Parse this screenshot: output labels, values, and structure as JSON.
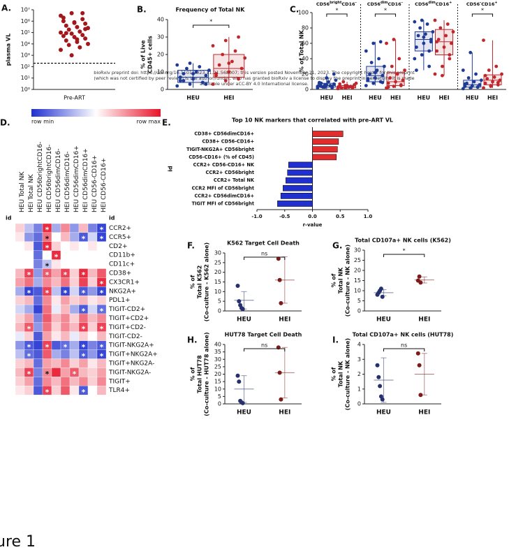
{
  "watermark": [
    "bioRxiv preprint doi: https://doi.org/10.1101/2023.11.21.568007; this version posted November 21, 2023. The copyright holder for this preprint",
    "(which was not certified by peer review) is the author/funder, who has granted bioRxiv a license to display the preprint in perpetuity. It is made",
    "available under aCC-BY 4.0 International license."
  ],
  "figure_label": "ure 1",
  "chart_data": [
    {
      "panel": "A.",
      "type": "scatter",
      "ylabel": "plasma VL",
      "categories": [
        "Pre-ART"
      ],
      "log": true,
      "color": "#a3161c",
      "threshold": 200,
      "ylim": [
        1,
        10000000
      ],
      "yticks": [
        {
          "value": 1,
          "label": "10⁰"
        },
        {
          "value": 10,
          "label": "10¹"
        },
        {
          "value": 100,
          "label": "10²"
        },
        {
          "value": 1000,
          "label": "10³"
        },
        {
          "value": 10000,
          "label": "10⁴"
        },
        {
          "value": 100000,
          "label": "10⁵"
        },
        {
          "value": 1000000,
          "label": "10⁶"
        },
        {
          "value": 10000000,
          "label": "10⁷"
        }
      ],
      "values": [
        3000000,
        5000000,
        1500000,
        2000000,
        800000,
        600000,
        400000,
        300000,
        250000,
        180000,
        120000,
        100000,
        80000,
        60000,
        50000,
        40000,
        30000,
        20000,
        15000,
        10000,
        8000,
        5000,
        3000,
        1000,
        5000000,
        1000000,
        700000,
        200000,
        90000,
        25000
      ]
    },
    {
      "panel": "B.",
      "type": "box",
      "title": "Frequency of Total NK",
      "ylabel": [
        "% of Live",
        "CD45+ cells"
      ],
      "ylim": [
        0,
        40
      ],
      "yticks": [
        0,
        10,
        20,
        30,
        40
      ],
      "sig": "*",
      "groups": [
        {
          "name": "HEU",
          "color": "#1f3a93",
          "values": [
            2,
            3,
            4,
            5,
            6,
            8,
            9,
            10,
            11,
            12,
            13,
            14,
            15,
            4,
            7,
            9,
            3,
            5
          ],
          "box": [
            1,
            4,
            7,
            11,
            15
          ]
        },
        {
          "name": "HEI",
          "color": "#c0272d",
          "values": [
            3,
            5,
            6,
            8,
            10,
            12,
            14,
            16,
            18,
            20,
            22,
            25,
            28,
            30,
            9,
            15
          ],
          "box": [
            2,
            7,
            12,
            20,
            30
          ]
        }
      ]
    },
    {
      "panel": "C.",
      "type": "box",
      "ylabel": [
        "% of Total NK"
      ],
      "ylim": [
        0,
        100
      ],
      "yticks": [
        0,
        20,
        40,
        60,
        80,
        100
      ],
      "subplots": [
        {
          "title_parts": [
            "CD56",
            "bright",
            "CD16",
            "-"
          ],
          "sig": "*",
          "groups": [
            {
              "name": "HEU",
              "color": "#1f3a93",
              "values": [
                2,
                3,
                4,
                5,
                6,
                7,
                8,
                10,
                12,
                3,
                5,
                4,
                6,
                2,
                9,
                15,
                20,
                4
              ],
              "box": [
                0,
                3,
                5,
                8,
                20
              ]
            },
            {
              "name": "HEI",
              "color": "#c0272d",
              "values": [
                1,
                2,
                3,
                4,
                5,
                6,
                2,
                3,
                8,
                10,
                4,
                3,
                5,
                2,
                7
              ],
              "box": [
                0,
                2,
                3,
                5,
                10
              ]
            }
          ]
        },
        {
          "title_parts": [
            "CD56",
            "dim",
            "CD16",
            "-"
          ],
          "sig": "*",
          "groups": [
            {
              "name": "HEU",
              "color": "#1f3a93",
              "values": [
                5,
                8,
                10,
                12,
                15,
                18,
                20,
                25,
                30,
                35,
                40,
                50,
                60,
                62,
                14,
                22,
                9
              ],
              "box": [
                5,
                10,
                18,
                30,
                62
              ]
            },
            {
              "name": "HEI",
              "color": "#c0272d",
              "values": [
                2,
                4,
                6,
                8,
                10,
                12,
                15,
                20,
                25,
                30,
                40,
                60,
                65,
                5,
                3
              ],
              "box": [
                2,
                5,
                10,
                22,
                65
              ]
            }
          ]
        },
        {
          "title_parts": [
            "CD56",
            "dim",
            "CD16",
            "+"
          ],
          "groups": [
            {
              "name": "HEU",
              "color": "#1f3a93",
              "values": [
                40,
                45,
                50,
                55,
                60,
                65,
                70,
                72,
                75,
                80,
                85,
                88,
                90,
                30,
                25,
                68,
                62
              ],
              "box": [
                25,
                50,
                65,
                75,
                90
              ]
            },
            {
              "name": "HEI",
              "color": "#c0272d",
              "values": [
                20,
                30,
                40,
                50,
                55,
                60,
                65,
                70,
                75,
                80,
                85,
                90,
                18,
                45,
                62
              ],
              "box": [
                18,
                45,
                62,
                78,
                90
              ]
            }
          ]
        },
        {
          "title_parts": [
            "CD56",
            "-",
            "CD16",
            "+"
          ],
          "sig": "*",
          "groups": [
            {
              "name": "HEU",
              "color": "#1f3a93",
              "values": [
                1,
                2,
                3,
                4,
                5,
                6,
                8,
                10,
                12,
                15,
                20,
                25,
                48,
                3,
                7
              ],
              "box": [
                1,
                3,
                6,
                12,
                48
              ]
            },
            {
              "name": "HEI",
              "color": "#c0272d",
              "values": [
                2,
                4,
                6,
                8,
                10,
                12,
                14,
                16,
                20,
                25,
                30,
                64,
                5,
                9,
                18
              ],
              "box": [
                2,
                6,
                12,
                19,
                64
              ]
            }
          ]
        }
      ]
    },
    {
      "panel": "D.",
      "type": "heatmap",
      "colorbar": [
        "row min",
        "row max"
      ],
      "row_title": "id",
      "col_title": "id",
      "star_label": "*",
      "columns": [
        "HEU Total NK",
        "HEI Total NK",
        "HEU CD56brightCD16-",
        "HEI CD56brightCD16-",
        "HEU CD56dimCD16-",
        "HEI CD56dimCD16-",
        "HEU CD56dimCD16+",
        "HEI CD56dimCD16+",
        "HEU CD56-CD16+",
        "HEI CD56-CD16+"
      ],
      "rows": [
        "CCR2+",
        "CCR5+",
        "CD2+",
        "CD11b+",
        "CD11c+",
        "CD38+",
        "CX3CR1+",
        "NKG2A+",
        "PDL1+",
        "TIGIT-CD2+",
        "TIGIT+CD2+",
        "TIGIT+CD2-",
        "TIGIT-CD2-",
        "TIGIT-NKG2A+",
        "TIGIT+NKG2A+",
        "TIGIT+NKG2A-",
        "TIGIT-NKG2A-",
        "TIGIT+",
        "TLR4+"
      ],
      "values": [
        [
          0.2,
          -0.3,
          -0.6,
          0.9,
          -0.4,
          0.5,
          -0.5,
          0.3,
          -0.6,
          -0.9
        ],
        [
          0.1,
          -0.5,
          -0.7,
          0.6,
          0.0,
          0.3,
          -0.4,
          -0.8,
          -0.2,
          -0.9
        ],
        [
          0.0,
          0.1,
          -0.8,
          0.9,
          0.2,
          0.0,
          0.1,
          0.0,
          0.1,
          0.0
        ],
        [
          0.0,
          0.0,
          -0.7,
          0.0,
          0.9,
          0.0,
          0.0,
          0.0,
          0.0,
          0.0
        ],
        [
          0.0,
          0.0,
          -0.6,
          -0.3,
          0.1,
          0.0,
          0.0,
          0.0,
          0.0,
          0.0
        ],
        [
          0.3,
          0.8,
          -0.5,
          0.7,
          0.4,
          0.8,
          0.2,
          0.9,
          0.3,
          0.7
        ],
        [
          0.4,
          0.6,
          -0.4,
          0.5,
          0.3,
          0.6,
          0.2,
          0.8,
          0.2,
          0.9
        ],
        [
          -0.4,
          -0.9,
          -0.8,
          0.8,
          -0.3,
          -0.9,
          -0.2,
          -0.8,
          -0.5,
          -0.9
        ],
        [
          0.2,
          0.3,
          -0.7,
          0.5,
          0.1,
          0.4,
          0.2,
          0.3,
          0.1,
          0.2
        ],
        [
          -0.2,
          -0.4,
          -0.9,
          0.6,
          -0.1,
          0.3,
          -0.4,
          -0.8,
          -0.2,
          -0.7
        ],
        [
          0.2,
          0.4,
          -0.6,
          0.7,
          0.3,
          0.5,
          0.2,
          0.6,
          0.3,
          0.5
        ],
        [
          0.3,
          0.7,
          -0.5,
          0.6,
          0.2,
          0.5,
          0.3,
          0.8,
          0.2,
          0.8
        ],
        [
          -0.1,
          0.2,
          -0.8,
          0.4,
          0.1,
          0.3,
          -0.1,
          0.2,
          0.0,
          0.3
        ],
        [
          -0.5,
          -0.8,
          -0.9,
          0.8,
          -0.8,
          -0.7,
          -0.4,
          -0.9,
          -0.6,
          -0.8
        ],
        [
          -0.3,
          -0.7,
          -0.8,
          0.7,
          -0.4,
          -0.6,
          -0.3,
          -0.8,
          -0.5,
          -0.9
        ],
        [
          0.2,
          0.3,
          -0.7,
          0.4,
          0.3,
          0.5,
          0.2,
          0.4,
          0.1,
          0.3
        ],
        [
          0.3,
          0.8,
          -0.6,
          0.5,
          0.9,
          0.4,
          0.7,
          0.3,
          0.2,
          0.4
        ],
        [
          0.2,
          0.4,
          -0.7,
          0.5,
          0.3,
          0.6,
          0.3,
          0.5,
          0.2,
          0.5
        ],
        [
          0.1,
          0.2,
          -0.8,
          0.8,
          0.2,
          0.7,
          0.1,
          -0.8,
          0.0,
          0.3
        ]
      ],
      "stars": [
        [
          0,
          3
        ],
        [
          0,
          9
        ],
        [
          1,
          3
        ],
        [
          1,
          7
        ],
        [
          1,
          9
        ],
        [
          2,
          3
        ],
        [
          3,
          4
        ],
        [
          4,
          3
        ],
        [
          5,
          1
        ],
        [
          5,
          3
        ],
        [
          5,
          5
        ],
        [
          5,
          7
        ],
        [
          6,
          9
        ],
        [
          7,
          1
        ],
        [
          7,
          3
        ],
        [
          7,
          5
        ],
        [
          7,
          7
        ],
        [
          7,
          9
        ],
        [
          9,
          7
        ],
        [
          9,
          9
        ],
        [
          11,
          1
        ],
        [
          11,
          7
        ],
        [
          11,
          9
        ],
        [
          13,
          1
        ],
        [
          13,
          3
        ],
        [
          13,
          5
        ],
        [
          13,
          7
        ],
        [
          13,
          9
        ],
        [
          14,
          1
        ],
        [
          14,
          7
        ],
        [
          14,
          9
        ],
        [
          16,
          1
        ],
        [
          16,
          3
        ],
        [
          16,
          6
        ],
        [
          18,
          3
        ],
        [
          18,
          7
        ]
      ]
    },
    {
      "panel": "E.",
      "type": "barh",
      "title": "Top 10 NK markers that correlated with pre-ART VL",
      "xlabel": "r-value",
      "ylabel": "id",
      "positive_color": "#e32c2c",
      "negative_color": "#1f2fd0",
      "categories": [
        "CD38+ CD56dimCD16+",
        "CD38+ CD56-CD16+",
        "TIGIT-NKG2A+ CD56bright",
        "CD56-CD16+ (% of CD45)",
        "CCR2+ CD56-CD16+ NK",
        "CCR2+ CD56bright",
        "CCR2+ Total NK",
        "CCR2 MFI of CD56bright",
        "CCR2+ CD56dimCD16+",
        "TIGIT MFI of CD56bright"
      ],
      "values": [
        0.55,
        0.47,
        0.45,
        0.43,
        -0.43,
        -0.45,
        -0.48,
        -0.53,
        -0.57,
        -0.63
      ],
      "xlim": [
        -1,
        1
      ],
      "xticks": [
        {
          "value": -1,
          "label": "-1.0"
        },
        {
          "value": -0.5,
          "label": "-0.5"
        },
        {
          "value": 0,
          "label": "0.0"
        },
        {
          "value": 0.5,
          "label": "0.5"
        },
        {
          "value": 1,
          "label": "1.0"
        }
      ]
    },
    {
      "panel": "F.",
      "type": "dotplot",
      "title": "K562 Target Cell Death",
      "ylabel": [
        "% of",
        "Total K562",
        "(Co-culture - K562 alone)"
      ],
      "ylim": [
        0,
        30
      ],
      "yticks": [
        0,
        5,
        10,
        15,
        20,
        25,
        30
      ],
      "sig": "ns",
      "groups": [
        {
          "name": "HEU",
          "color": "#26306e",
          "values": [
            13,
            5,
            3,
            1.5,
            1
          ],
          "mean": 5.5,
          "sd": 4.5
        },
        {
          "name": "HEI",
          "color": "#7d1a1a",
          "values": [
            27,
            16,
            4
          ],
          "mean": 16,
          "sd": 12
        }
      ]
    },
    {
      "panel": "G.",
      "type": "dotplot",
      "title": "Total CD107a+ NK cells (K562)",
      "ylabel": [
        "% of",
        "Total NK",
        "(Co-culture - NK alone)"
      ],
      "ylim": [
        0,
        30
      ],
      "yticks": [
        0,
        5,
        10,
        15,
        20,
        25,
        30
      ],
      "sig": "*",
      "groups": [
        {
          "name": "HEU",
          "color": "#26306e",
          "values": [
            8,
            9,
            10,
            11,
            7
          ],
          "mean": 9,
          "sd": 1.5
        },
        {
          "name": "HEI",
          "color": "#7d1a1a",
          "values": [
            15,
            17,
            14
          ],
          "mean": 15.3,
          "sd": 1.5
        }
      ]
    },
    {
      "panel": "H.",
      "type": "dotplot",
      "title": "HUT78 Target Cell Death",
      "ylabel": [
        "% of",
        "Total HUT78",
        "(Co-culture - HUT78 alone)"
      ],
      "ylim": [
        0,
        40
      ],
      "yticks": [
        0,
        5,
        10,
        15,
        20,
        25,
        30,
        35,
        40
      ],
      "sig": "ns",
      "groups": [
        {
          "name": "HEU",
          "color": "#26306e",
          "values": [
            19,
            15,
            2,
            1,
            0.5
          ],
          "mean": 10,
          "sd": 9
        },
        {
          "name": "HEI",
          "color": "#7d1a1a",
          "values": [
            38,
            21,
            3
          ],
          "mean": 21,
          "sd": 17
        }
      ]
    },
    {
      "panel": "I.",
      "type": "dotplot",
      "title": "Total CD107a+ NK cells (HUT78)",
      "ylabel": [
        "% of",
        "Total NK",
        "(Co-culture - NK alone)"
      ],
      "ylim": [
        0,
        4
      ],
      "yticks": [
        0,
        1,
        2,
        3,
        4
      ],
      "sig": "ns",
      "groups": [
        {
          "name": "HEU",
          "color": "#26306e",
          "values": [
            2.6,
            1.8,
            1.2,
            0.5,
            0.3
          ],
          "mean": 1.6,
          "sd": 1.5
        },
        {
          "name": "HEI",
          "color": "#7d1a1a",
          "values": [
            3.4,
            2.6,
            0.6
          ],
          "mean": 2,
          "sd": 1.4
        }
      ]
    }
  ]
}
